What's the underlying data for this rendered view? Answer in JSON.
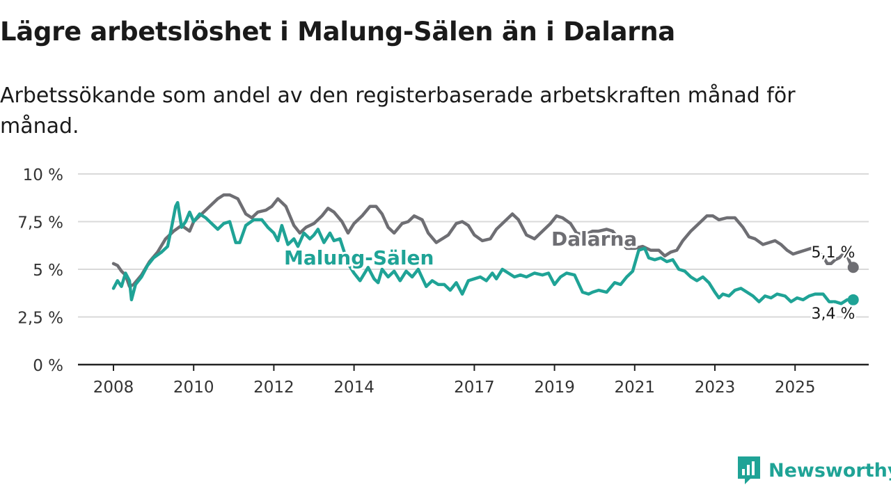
{
  "title": "Lägre arbetslöshet i Malung-Sälen än i Dalarna",
  "subtitle": "Arbetssökande som andel av den registerbaserade arbetskraften månad för månad.",
  "brand": "Newsworthy",
  "colors": {
    "dalarna": "#6e6e73",
    "malung": "#1fa396",
    "grid": "#d9d9d9",
    "axis": "#222222"
  },
  "chart_data": {
    "type": "line",
    "title": "Lägre arbetslöshet i Malung-Sälen än i Dalarna",
    "xlabel": "",
    "ylabel": "",
    "xlim": [
      2008,
      2026.4
    ],
    "ylim": [
      0,
      10
    ],
    "y_ticks": [
      0,
      2.5,
      5,
      7.5,
      10
    ],
    "y_tick_labels": [
      "0 %",
      "2,5 %",
      "5 %",
      "7,5 %",
      "10 %"
    ],
    "x_ticks": [
      2008,
      2010,
      2012,
      2014,
      2017,
      2019,
      2021,
      2023,
      2025
    ],
    "x_tick_labels": [
      "2008",
      "2010",
      "2012",
      "2014",
      "2017",
      "2019",
      "2021",
      "2023",
      "2025"
    ],
    "series": [
      {
        "name": "Dalarna",
        "end_label": "5,1 %",
        "points": [
          [
            2008.0,
            5.3
          ],
          [
            2008.1,
            5.2
          ],
          [
            2008.2,
            4.9
          ],
          [
            2008.3,
            4.7
          ],
          [
            2008.4,
            4.1
          ],
          [
            2008.5,
            4.2
          ],
          [
            2008.7,
            4.7
          ],
          [
            2008.9,
            5.4
          ],
          [
            2009.1,
            5.9
          ],
          [
            2009.3,
            6.6
          ],
          [
            2009.5,
            7.0
          ],
          [
            2009.7,
            7.3
          ],
          [
            2009.9,
            7.0
          ],
          [
            2010.0,
            7.5
          ],
          [
            2010.2,
            7.9
          ],
          [
            2010.4,
            8.3
          ],
          [
            2010.6,
            8.7
          ],
          [
            2010.75,
            8.9
          ],
          [
            2010.9,
            8.9
          ],
          [
            2011.1,
            8.7
          ],
          [
            2011.3,
            7.9
          ],
          [
            2011.45,
            7.7
          ],
          [
            2011.6,
            8.0
          ],
          [
            2011.8,
            8.1
          ],
          [
            2011.95,
            8.3
          ],
          [
            2012.1,
            8.7
          ],
          [
            2012.3,
            8.3
          ],
          [
            2012.5,
            7.3
          ],
          [
            2012.65,
            6.9
          ],
          [
            2012.8,
            7.2
          ],
          [
            2013.0,
            7.4
          ],
          [
            2013.2,
            7.8
          ],
          [
            2013.35,
            8.2
          ],
          [
            2013.5,
            8.0
          ],
          [
            2013.7,
            7.5
          ],
          [
            2013.85,
            6.9
          ],
          [
            2014.0,
            7.4
          ],
          [
            2014.2,
            7.8
          ],
          [
            2014.4,
            8.3
          ],
          [
            2014.55,
            8.3
          ],
          [
            2014.7,
            7.9
          ],
          [
            2014.85,
            7.2
          ],
          [
            2015.0,
            6.9
          ],
          [
            2015.2,
            7.4
          ],
          [
            2015.35,
            7.5
          ],
          [
            2015.5,
            7.8
          ],
          [
            2015.7,
            7.6
          ],
          [
            2015.85,
            6.9
          ],
          [
            2016.05,
            6.4
          ],
          [
            2016.2,
            6.6
          ],
          [
            2016.35,
            6.8
          ],
          [
            2016.55,
            7.4
          ],
          [
            2016.7,
            7.5
          ],
          [
            2016.85,
            7.3
          ],
          [
            2017.0,
            6.8
          ],
          [
            2017.2,
            6.5
          ],
          [
            2017.4,
            6.6
          ],
          [
            2017.55,
            7.1
          ],
          [
            2017.75,
            7.5
          ],
          [
            2017.95,
            7.9
          ],
          [
            2018.1,
            7.6
          ],
          [
            2018.3,
            6.8
          ],
          [
            2018.5,
            6.6
          ],
          [
            2018.7,
            7.0
          ],
          [
            2018.9,
            7.4
          ],
          [
            2019.05,
            7.8
          ],
          [
            2019.2,
            7.7
          ],
          [
            2019.4,
            7.4
          ],
          [
            2019.55,
            6.9
          ],
          [
            2019.75,
            6.8
          ],
          [
            2019.95,
            7.0
          ],
          [
            2020.1,
            7.0
          ],
          [
            2020.3,
            7.1
          ],
          [
            2020.45,
            7.0
          ],
          [
            2020.6,
            6.6
          ],
          [
            2020.8,
            6.1
          ],
          [
            2021.0,
            6.1
          ],
          [
            2021.2,
            6.2
          ],
          [
            2021.4,
            6.0
          ],
          [
            2021.6,
            6.0
          ],
          [
            2021.75,
            5.7
          ],
          [
            2021.9,
            5.9
          ],
          [
            2022.05,
            6.0
          ],
          [
            2022.2,
            6.5
          ],
          [
            2022.4,
            7.0
          ],
          [
            2022.6,
            7.4
          ],
          [
            2022.8,
            7.8
          ],
          [
            2022.95,
            7.8
          ],
          [
            2023.1,
            7.6
          ],
          [
            2023.3,
            7.7
          ],
          [
            2023.5,
            7.7
          ],
          [
            2023.7,
            7.2
          ],
          [
            2023.85,
            6.7
          ],
          [
            2024.0,
            6.6
          ],
          [
            2024.2,
            6.3
          ],
          [
            2024.35,
            6.4
          ],
          [
            2024.5,
            6.5
          ],
          [
            2024.65,
            6.3
          ],
          [
            2024.8,
            6.0
          ],
          [
            2024.95,
            5.8
          ],
          [
            2025.1,
            5.9
          ],
          [
            2025.25,
            6.0
          ],
          [
            2025.4,
            6.1
          ],
          [
            2025.55,
            5.9
          ],
          [
            2025.7,
            5.7
          ],
          [
            2025.8,
            5.3
          ],
          [
            2025.9,
            5.3
          ],
          [
            2026.0,
            5.5
          ],
          [
            2026.1,
            5.6
          ],
          [
            2026.2,
            5.8
          ],
          [
            2026.3,
            5.7
          ],
          [
            2026.4,
            5.2
          ],
          [
            2026.45,
            5.1
          ]
        ]
      },
      {
        "name": "Malung-Sälen",
        "end_label": "3,4 %",
        "points": [
          [
            2008.0,
            4.0
          ],
          [
            2008.1,
            4.4
          ],
          [
            2008.2,
            4.1
          ],
          [
            2008.3,
            4.8
          ],
          [
            2008.4,
            4.4
          ],
          [
            2008.45,
            3.4
          ],
          [
            2008.55,
            4.2
          ],
          [
            2008.7,
            4.6
          ],
          [
            2008.85,
            5.2
          ],
          [
            2009.0,
            5.6
          ],
          [
            2009.2,
            5.9
          ],
          [
            2009.35,
            6.2
          ],
          [
            2009.45,
            7.2
          ],
          [
            2009.55,
            8.3
          ],
          [
            2009.6,
            8.5
          ],
          [
            2009.7,
            7.2
          ],
          [
            2009.8,
            7.5
          ],
          [
            2009.9,
            8.0
          ],
          [
            2010.0,
            7.5
          ],
          [
            2010.15,
            7.9
          ],
          [
            2010.3,
            7.7
          ],
          [
            2010.45,
            7.4
          ],
          [
            2010.6,
            7.1
          ],
          [
            2010.75,
            7.4
          ],
          [
            2010.9,
            7.5
          ],
          [
            2011.05,
            6.4
          ],
          [
            2011.15,
            6.4
          ],
          [
            2011.3,
            7.3
          ],
          [
            2011.5,
            7.6
          ],
          [
            2011.7,
            7.6
          ],
          [
            2011.85,
            7.2
          ],
          [
            2012.0,
            6.9
          ],
          [
            2012.1,
            6.5
          ],
          [
            2012.2,
            7.3
          ],
          [
            2012.35,
            6.3
          ],
          [
            2012.5,
            6.6
          ],
          [
            2012.6,
            6.2
          ],
          [
            2012.75,
            6.9
          ],
          [
            2012.9,
            6.6
          ],
          [
            2013.0,
            6.8
          ],
          [
            2013.1,
            7.1
          ],
          [
            2013.25,
            6.4
          ],
          [
            2013.4,
            6.9
          ],
          [
            2013.5,
            6.5
          ],
          [
            2013.65,
            6.6
          ],
          [
            2013.85,
            5.3
          ],
          [
            2014.0,
            4.8
          ],
          [
            2014.15,
            4.4
          ],
          [
            2014.35,
            5.1
          ],
          [
            2014.5,
            4.5
          ],
          [
            2014.6,
            4.3
          ],
          [
            2014.7,
            5.0
          ],
          [
            2014.85,
            4.6
          ],
          [
            2015.0,
            4.9
          ],
          [
            2015.15,
            4.4
          ],
          [
            2015.3,
            4.9
          ],
          [
            2015.45,
            4.6
          ],
          [
            2015.6,
            5.0
          ],
          [
            2015.8,
            4.1
          ],
          [
            2015.95,
            4.4
          ],
          [
            2016.1,
            4.2
          ],
          [
            2016.25,
            4.2
          ],
          [
            2016.4,
            3.9
          ],
          [
            2016.55,
            4.3
          ],
          [
            2016.7,
            3.7
          ],
          [
            2016.85,
            4.4
          ],
          [
            2017.0,
            4.5
          ],
          [
            2017.15,
            4.6
          ],
          [
            2017.3,
            4.4
          ],
          [
            2017.45,
            4.8
          ],
          [
            2017.55,
            4.5
          ],
          [
            2017.7,
            5.0
          ],
          [
            2017.85,
            4.8
          ],
          [
            2018.0,
            4.6
          ],
          [
            2018.15,
            4.7
          ],
          [
            2018.3,
            4.6
          ],
          [
            2018.5,
            4.8
          ],
          [
            2018.7,
            4.7
          ],
          [
            2018.85,
            4.8
          ],
          [
            2019.0,
            4.2
          ],
          [
            2019.15,
            4.6
          ],
          [
            2019.3,
            4.8
          ],
          [
            2019.5,
            4.7
          ],
          [
            2019.7,
            3.8
          ],
          [
            2019.85,
            3.7
          ],
          [
            2019.95,
            3.8
          ],
          [
            2020.1,
            3.9
          ],
          [
            2020.3,
            3.8
          ],
          [
            2020.5,
            4.3
          ],
          [
            2020.65,
            4.2
          ],
          [
            2020.8,
            4.6
          ],
          [
            2020.95,
            4.9
          ],
          [
            2021.1,
            6.0
          ],
          [
            2021.25,
            6.1
          ],
          [
            2021.35,
            5.6
          ],
          [
            2021.5,
            5.5
          ],
          [
            2021.65,
            5.6
          ],
          [
            2021.8,
            5.4
          ],
          [
            2021.95,
            5.5
          ],
          [
            2022.1,
            5.0
          ],
          [
            2022.25,
            4.9
          ],
          [
            2022.4,
            4.6
          ],
          [
            2022.55,
            4.4
          ],
          [
            2022.7,
            4.6
          ],
          [
            2022.85,
            4.3
          ],
          [
            2023.0,
            3.8
          ],
          [
            2023.1,
            3.5
          ],
          [
            2023.2,
            3.7
          ],
          [
            2023.35,
            3.6
          ],
          [
            2023.5,
            3.9
          ],
          [
            2023.65,
            4.0
          ],
          [
            2023.8,
            3.8
          ],
          [
            2023.95,
            3.6
          ],
          [
            2024.1,
            3.3
          ],
          [
            2024.25,
            3.6
          ],
          [
            2024.4,
            3.5
          ],
          [
            2024.55,
            3.7
          ],
          [
            2024.75,
            3.6
          ],
          [
            2024.9,
            3.3
          ],
          [
            2025.05,
            3.5
          ],
          [
            2025.2,
            3.4
          ],
          [
            2025.35,
            3.6
          ],
          [
            2025.5,
            3.7
          ],
          [
            2025.7,
            3.7
          ],
          [
            2025.85,
            3.3
          ],
          [
            2026.0,
            3.3
          ],
          [
            2026.15,
            3.2
          ],
          [
            2026.3,
            3.4
          ],
          [
            2026.45,
            3.4
          ]
        ]
      }
    ]
  }
}
